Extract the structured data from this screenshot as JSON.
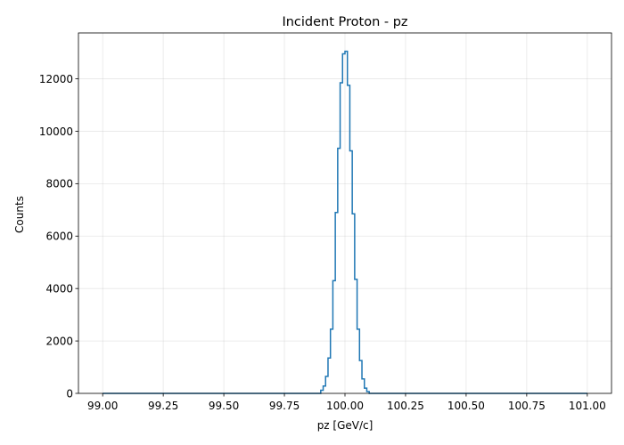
{
  "chart_data": {
    "type": "histogram",
    "title": "Incident Proton - pz",
    "xlabel": "pz [GeV/c]",
    "ylabel": "Counts",
    "xlim": [
      98.9,
      101.1
    ],
    "ylim": [
      0,
      13750
    ],
    "xticks": [
      "99.00",
      "99.25",
      "99.50",
      "99.75",
      "100.00",
      "100.25",
      "100.50",
      "100.75",
      "101.00"
    ],
    "yticks": [
      "0",
      "2000",
      "4000",
      "6000",
      "8000",
      "10000",
      "12000"
    ],
    "grid": true,
    "color": "#1f77b4",
    "bin_range": [
      99.0,
      101.0
    ],
    "bins": [
      {
        "x0": 99.9,
        "count": 120
      },
      {
        "x0": 99.91,
        "count": 280
      },
      {
        "x0": 99.92,
        "count": 650
      },
      {
        "x0": 99.93,
        "count": 1350
      },
      {
        "x0": 99.94,
        "count": 2450
      },
      {
        "x0": 99.95,
        "count": 4300
      },
      {
        "x0": 99.96,
        "count": 6900
      },
      {
        "x0": 99.97,
        "count": 9350
      },
      {
        "x0": 99.98,
        "count": 11850
      },
      {
        "x0": 99.99,
        "count": 12950
      },
      {
        "x0": 100.0,
        "count": 13050
      },
      {
        "x0": 100.01,
        "count": 11750
      },
      {
        "x0": 100.02,
        "count": 9250
      },
      {
        "x0": 100.03,
        "count": 6850
      },
      {
        "x0": 100.04,
        "count": 4350
      },
      {
        "x0": 100.05,
        "count": 2450
      },
      {
        "x0": 100.06,
        "count": 1250
      },
      {
        "x0": 100.07,
        "count": 550
      },
      {
        "x0": 100.08,
        "count": 200
      },
      {
        "x0": 100.09,
        "count": 70
      }
    ]
  }
}
